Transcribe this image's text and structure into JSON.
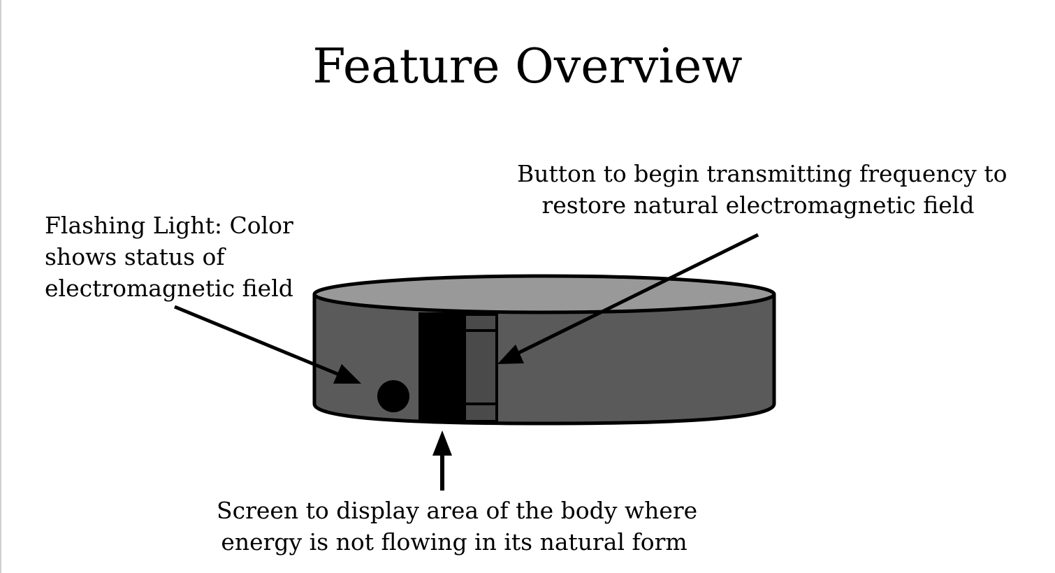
{
  "slide": {
    "title": "Feature Overview"
  },
  "callouts": {
    "button": {
      "lines": [
        "Button to begin transmitting frequency to",
        "restore natural electromagnetic field"
      ]
    },
    "light": {
      "lines": [
        "Flashing Light: Color",
        "shows status of",
        "electromagnetic field"
      ]
    },
    "screen": {
      "lines": [
        "Screen to display area of the body where",
        "energy is not flowing in its natural form"
      ]
    }
  },
  "device": {
    "colors": {
      "top": "#999999",
      "body": "#5a5a5a",
      "screen": "#000000",
      "button": "#4a4a4a",
      "light": "#000000",
      "outline": "#000000"
    }
  }
}
